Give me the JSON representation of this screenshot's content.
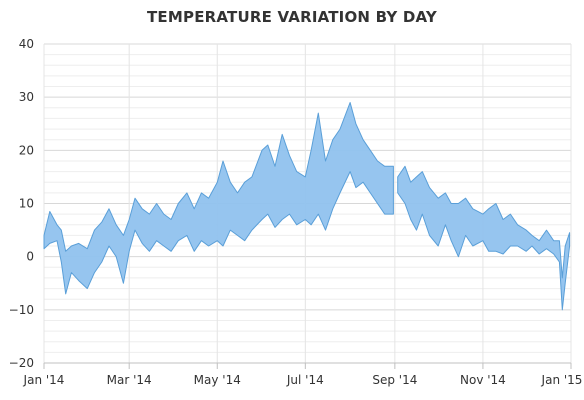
{
  "chart_data": {
    "type": "area",
    "subtype": "arearange",
    "title": "TEMPERATURE VARIATION BY DAY",
    "xlabel": "",
    "ylabel": "",
    "ylim": [
      -20,
      40
    ],
    "y_ticks": [
      40,
      30,
      20,
      10,
      0,
      -10,
      -20
    ],
    "y_tick_labels": [
      "40",
      "30",
      "20",
      "10",
      "0",
      "−10",
      "−20"
    ],
    "x_ticks": [
      "Jan '14",
      "Mar '14",
      "May '14",
      "Jul '14",
      "Sep '14",
      "Nov '14",
      "Jan '15"
    ],
    "x_tick_dates": [
      "2014-01-01",
      "2014-03-01",
      "2014-05-01",
      "2014-07-01",
      "2014-09-01",
      "2014-11-01",
      "2015-01-01"
    ],
    "x_range": [
      "2014-01-01",
      "2014-12-31"
    ],
    "grid": true,
    "legend": "none",
    "fill_color": "#90c2ee",
    "line_color": "#5a9fd8",
    "series": [
      {
        "values": [
          [
            "2014-01-01",
            1.5,
            4.0
          ],
          [
            "2014-01-05",
            2.5,
            8.5
          ],
          [
            "2014-01-10",
            3.0,
            6.0
          ],
          [
            "2014-01-13",
            -1.0,
            5.0
          ],
          [
            "2014-01-16",
            -7.0,
            1.0
          ],
          [
            "2014-01-20",
            -3.0,
            2.0
          ],
          [
            "2014-01-25",
            -4.5,
            2.5
          ],
          [
            "2014-01-31",
            -6.0,
            1.5
          ],
          [
            "2014-02-05",
            -3.0,
            5.0
          ],
          [
            "2014-02-10",
            -1.0,
            6.5
          ],
          [
            "2014-02-15",
            2.0,
            9.0
          ],
          [
            "2014-02-20",
            0.0,
            6.0
          ],
          [
            "2014-02-25",
            -5.0,
            4.0
          ],
          [
            "2014-03-01",
            1.0,
            7.0
          ],
          [
            "2014-03-05",
            5.0,
            11.0
          ],
          [
            "2014-03-10",
            2.5,
            9.0
          ],
          [
            "2014-03-15",
            1.0,
            8.0
          ],
          [
            "2014-03-20",
            3.0,
            10.0
          ],
          [
            "2014-03-25",
            2.0,
            8.0
          ],
          [
            "2014-03-30",
            1.0,
            7.0
          ],
          [
            "2014-04-04",
            3.0,
            10.0
          ],
          [
            "2014-04-10",
            4.0,
            12.0
          ],
          [
            "2014-04-15",
            1.0,
            9.0
          ],
          [
            "2014-04-20",
            3.0,
            12.0
          ],
          [
            "2014-04-25",
            2.0,
            11.0
          ],
          [
            "2014-05-01",
            3.0,
            14.0
          ],
          [
            "2014-05-05",
            2.0,
            18.0
          ],
          [
            "2014-05-10",
            5.0,
            14.0
          ],
          [
            "2014-05-15",
            4.0,
            12.0
          ],
          [
            "2014-05-20",
            3.0,
            14.0
          ],
          [
            "2014-05-25",
            5.0,
            15.0
          ],
          [
            "2014-06-01",
            7.0,
            20.0
          ],
          [
            "2014-06-05",
            8.0,
            21.0
          ],
          [
            "2014-06-10",
            5.5,
            17.0
          ],
          [
            "2014-06-15",
            7.0,
            23.0
          ],
          [
            "2014-06-20",
            8.0,
            19.0
          ],
          [
            "2014-06-25",
            6.0,
            16.0
          ],
          [
            "2014-07-01",
            7.0,
            15.0
          ],
          [
            "2014-07-05",
            6.0,
            20.0
          ],
          [
            "2014-07-10",
            8.0,
            27.0
          ],
          [
            "2014-07-15",
            5.0,
            18.0
          ],
          [
            "2014-07-20",
            9.0,
            22.0
          ],
          [
            "2014-07-25",
            12.0,
            24.0
          ],
          [
            "2014-08-01",
            16.0,
            29.0
          ],
          [
            "2014-08-05",
            13.0,
            25.0
          ],
          [
            "2014-08-10",
            14.0,
            22.0
          ],
          [
            "2014-08-15",
            12.0,
            20.0
          ],
          [
            "2014-08-20",
            10.0,
            18.0
          ],
          [
            "2014-08-25",
            8.0,
            17.0
          ],
          [
            "2014-08-31",
            8.0,
            17.0
          ],
          [
            "2014-09-03",
            12.0,
            15.0
          ],
          [
            "2014-09-08",
            10.0,
            17.0
          ],
          [
            "2014-09-12",
            7.0,
            14.0
          ],
          [
            "2014-09-16",
            5.0,
            15.0
          ],
          [
            "2014-09-20",
            8.0,
            16.0
          ],
          [
            "2014-09-25",
            4.0,
            13.0
          ],
          [
            "2014-10-01",
            2.0,
            11.0
          ],
          [
            "2014-10-06",
            6.0,
            12.0
          ],
          [
            "2014-10-10",
            3.0,
            10.0
          ],
          [
            "2014-10-15",
            0.0,
            10.0
          ],
          [
            "2014-10-20",
            4.0,
            11.0
          ],
          [
            "2014-10-25",
            2.0,
            9.0
          ],
          [
            "2014-11-01",
            3.0,
            8.0
          ],
          [
            "2014-11-05",
            1.0,
            9.0
          ],
          [
            "2014-11-10",
            1.0,
            10.0
          ],
          [
            "2014-11-15",
            0.5,
            7.0
          ],
          [
            "2014-11-20",
            2.0,
            8.0
          ],
          [
            "2014-11-25",
            2.0,
            6.0
          ],
          [
            "2014-12-01",
            1.0,
            5.0
          ],
          [
            "2014-12-05",
            2.0,
            4.0
          ],
          [
            "2014-12-10",
            0.5,
            3.0
          ],
          [
            "2014-12-15",
            1.5,
            5.0
          ],
          [
            "2014-12-20",
            0.5,
            3.0
          ],
          [
            "2014-12-24",
            -1.0,
            3.0
          ],
          [
            "2014-12-26",
            -10.0,
            -4.0
          ],
          [
            "2014-12-28",
            -5.0,
            2.0
          ],
          [
            "2014-12-31",
            2.0,
            4.5
          ]
        ]
      }
    ]
  }
}
